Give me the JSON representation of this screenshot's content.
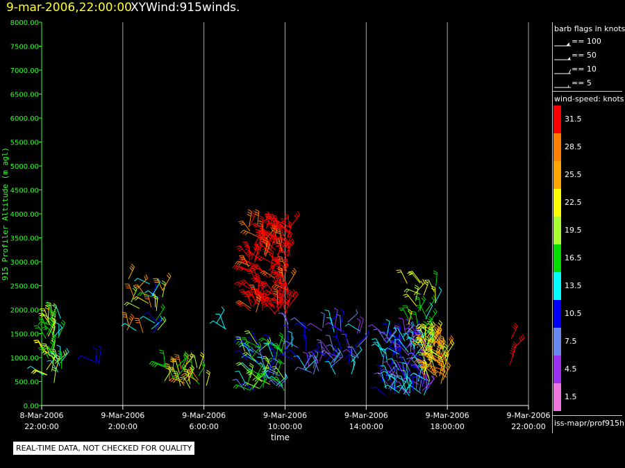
{
  "header": {
    "date_time": "9-mar-2006,22:00:00",
    "product": "XYWind:915winds."
  },
  "chart_data": {
    "type": "scatter",
    "subtype": "wind-barbs",
    "ylabel": "915 Profiler Altitude (m agl)",
    "xlabel": "time",
    "ylim": [
      0,
      8000
    ],
    "y_ticks": [
      "0.00",
      "500.00",
      "1000.00",
      "1500.00",
      "2000.00",
      "2500.00",
      "3000.00",
      "3500.00",
      "4000.00",
      "4500.00",
      "5000.00",
      "5500.00",
      "6000.00",
      "6500.00",
      "7000.00",
      "7500.00",
      "8000.00"
    ],
    "x_ticks": [
      {
        "line1": "8-Mar-2006",
        "line2": "22:00:00"
      },
      {
        "line1": "9-Mar-2006",
        "line2": "2:00:00"
      },
      {
        "line1": "9-Mar-2006",
        "line2": "6:00:00"
      },
      {
        "line1": "9-Mar-2006",
        "line2": "10:00:00"
      },
      {
        "line1": "9-Mar-2006",
        "line2": "14:00:00"
      },
      {
        "line1": "9-Mar-2006",
        "line2": "18:00:00"
      },
      {
        "line1": "9-Mar-2006",
        "line2": "22:00:00"
      }
    ],
    "x_range_hours": [
      0,
      24
    ],
    "vertical_grid": true,
    "axis_color": "#33ff33",
    "clusters": [
      {
        "t0": 0.0,
        "t1": 1.0,
        "y0": 450,
        "y1": 1850,
        "speed_lo": 13,
        "speed_hi": 24,
        "n": 45
      },
      {
        "t0": 2.6,
        "t1": 2.8,
        "y0": 550,
        "y1": 950,
        "speed_lo": 9,
        "speed_hi": 11,
        "n": 3
      },
      {
        "t0": 4.2,
        "t1": 6.0,
        "y0": 1450,
        "y1": 2650,
        "speed_lo": 9,
        "speed_hi": 30,
        "n": 28
      },
      {
        "t0": 6.0,
        "t1": 8.2,
        "y0": 350,
        "y1": 850,
        "speed_lo": 15,
        "speed_hi": 29,
        "n": 30
      },
      {
        "t0": 8.5,
        "t1": 9.2,
        "y0": 1550,
        "y1": 1850,
        "speed_lo": 12,
        "speed_hi": 14,
        "n": 3
      },
      {
        "t0": 10.2,
        "t1": 12.3,
        "y0": 1900,
        "y1": 3800,
        "speed_lo": 29,
        "speed_hi": 34,
        "n": 140
      },
      {
        "t0": 10.0,
        "t1": 12.0,
        "y0": 300,
        "y1": 1300,
        "speed_lo": 6,
        "speed_hi": 21,
        "n": 70
      },
      {
        "t0": 12.0,
        "t1": 15.8,
        "y0": 600,
        "y1": 1750,
        "speed_lo": 4,
        "speed_hi": 14,
        "n": 65
      },
      {
        "t0": 16.8,
        "t1": 19.0,
        "y0": 200,
        "y1": 1500,
        "speed_lo": 3,
        "speed_hi": 15,
        "n": 120
      },
      {
        "t0": 18.0,
        "t1": 19.5,
        "y0": 1300,
        "y1": 2600,
        "speed_lo": 14,
        "speed_hi": 23,
        "n": 30
      },
      {
        "t0": 18.8,
        "t1": 20.0,
        "y0": 450,
        "y1": 1350,
        "speed_lo": 20,
        "speed_hi": 29,
        "n": 60
      },
      {
        "t0": 22.7,
        "t1": 23.3,
        "y0": 500,
        "y1": 1450,
        "speed_lo": 31,
        "speed_hi": 34,
        "n": 4
      }
    ]
  },
  "barb_legend": {
    "title": "barb flags in knots",
    "items": [
      "== 100",
      "== 50",
      "== 10",
      "== 5"
    ]
  },
  "wind_speed_legend": {
    "title": "wind-speed: knots",
    "bins": [
      {
        "label": "31.5",
        "color": "#ff0000"
      },
      {
        "label": "28.5",
        "color": "#ff7f00"
      },
      {
        "label": "25.5",
        "color": "#ffa500"
      },
      {
        "label": "22.5",
        "color": "#ffff00"
      },
      {
        "label": "19.5",
        "color": "#aaff33"
      },
      {
        "label": "16.5",
        "color": "#00dd00"
      },
      {
        "label": "13.5",
        "color": "#00ffff"
      },
      {
        "label": "10.5",
        "color": "#0000ff"
      },
      {
        "label": "7.5",
        "color": "#6688ee"
      },
      {
        "label": "4.5",
        "color": "#9933ee"
      },
      {
        "label": "1.5",
        "color": "#ee77dd"
      }
    ]
  },
  "source_label": "iss-mapr/prof915h",
  "footer_note": "REAL-TIME DATA, NOT CHECKED FOR QUALITY"
}
